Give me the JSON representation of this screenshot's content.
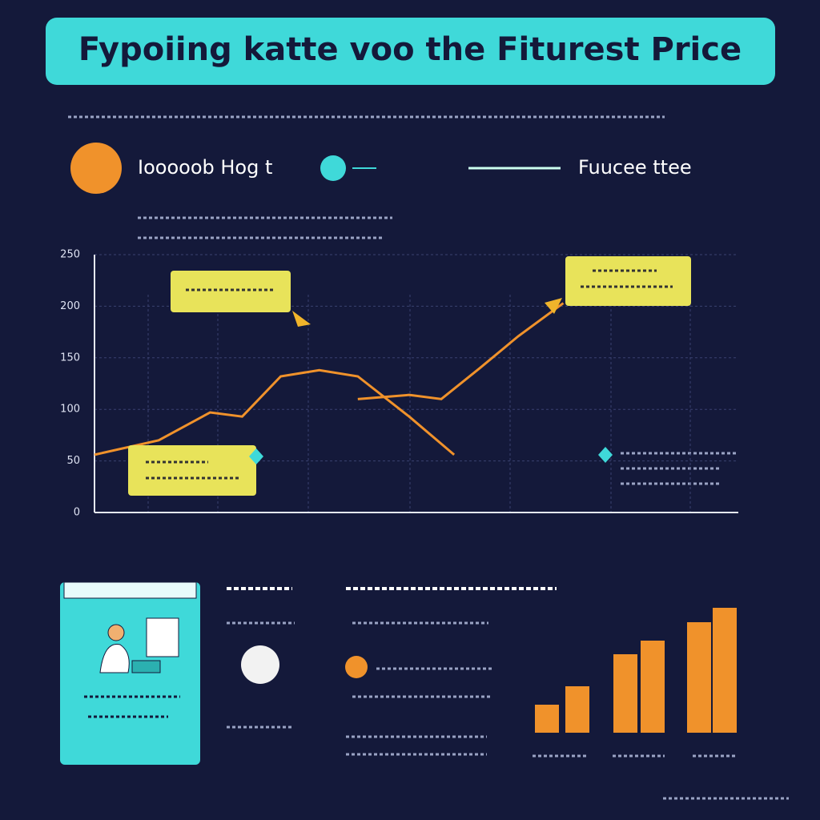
{
  "title": "Fypoiing katte voo the Fiturest Price",
  "chart_data": [
    {
      "type": "line",
      "xlim": [
        0,
        10
      ],
      "ylim": [
        0,
        250
      ],
      "yticks": [
        0,
        50,
        100,
        150,
        200,
        250
      ],
      "grid": true,
      "series": [
        {
          "name": "Iooooob Hog t",
          "color": "#f0922b",
          "x": [
            0,
            1,
            1.8,
            2.3,
            2.9,
            3.5,
            4.1,
            4.9,
            5.6
          ],
          "values": [
            56,
            70,
            97,
            93,
            132,
            138,
            132,
            93,
            56
          ]
        },
        {
          "name": "Fuucee ttee",
          "color": "#f0922b",
          "x": [
            4.1,
            4.9,
            5.4,
            6.0,
            6.6,
            7.3
          ],
          "values": [
            110,
            114,
            110,
            140,
            171,
            203
          ]
        }
      ]
    },
    {
      "type": "bar",
      "color": "#f0922b",
      "ylim": [
        0,
        160
      ],
      "values": [
        35,
        58,
        98,
        115,
        138,
        156
      ]
    }
  ]
}
